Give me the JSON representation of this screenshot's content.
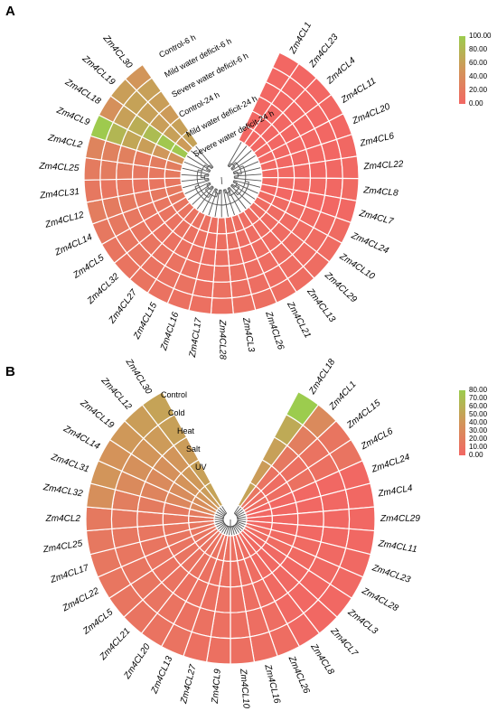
{
  "colors": {
    "low": "#F26763",
    "mid": "#D2955A",
    "high": "#9CCC4E",
    "cell_border": "#ffffff",
    "tree": "#555555"
  },
  "chart_data": [
    {
      "type": "heatmap",
      "panel": "A",
      "conditions": [
        "Control-6 h",
        "Mild water deficit-6 h",
        "Severe water deficit-6 h",
        "Control-24 h",
        "Mild water deficit-24 h",
        "Severe water deficit-24 h"
      ],
      "genes": [
        "Zm4CL1",
        "Zm4CL23",
        "Zm4CL4",
        "Zm4CL11",
        "Zm4CL20",
        "Zm4CL6",
        "Zm4CL22",
        "Zm4CL8",
        "Zm4CL7",
        "Zm4CL24",
        "Zm4CL10",
        "Zm4CL29",
        "Zm4CL13",
        "Zm4CL21",
        "Zm4CL26",
        "Zm4CL3",
        "Zm4CL28",
        "Zm4CL17",
        "Zm4CL16",
        "Zm4CL15",
        "Zm4CL27",
        "Zm4CL32",
        "Zm4CL5",
        "Zm4CL14",
        "Zm4CL12",
        "Zm4CL31",
        "Zm4CL25",
        "Zm4CL2",
        "Zm4CL9",
        "Zm4CL18",
        "Zm4CL19",
        "Zm4CL30"
      ],
      "values": [
        [
          0,
          0,
          0,
          0,
          0,
          0
        ],
        [
          0,
          0,
          0,
          0,
          0,
          0
        ],
        [
          0,
          0,
          0,
          0,
          0,
          0
        ],
        [
          1,
          0,
          0,
          0,
          0,
          1
        ],
        [
          1,
          1,
          0,
          0,
          0,
          0
        ],
        [
          2,
          1,
          1,
          0,
          0,
          1
        ],
        [
          2,
          2,
          1,
          0,
          1,
          2
        ],
        [
          3,
          2,
          2,
          2,
          1,
          3
        ],
        [
          1,
          0,
          0,
          0,
          0,
          1
        ],
        [
          3,
          4,
          4,
          3,
          3,
          4
        ],
        [
          5,
          4,
          4,
          5,
          5,
          5
        ],
        [
          6,
          5,
          5,
          6,
          5,
          6
        ],
        [
          6,
          6,
          5,
          6,
          6,
          7
        ],
        [
          7,
          6,
          6,
          7,
          7,
          8
        ],
        [
          8,
          7,
          7,
          8,
          8,
          9
        ],
        [
          9,
          9,
          8,
          9,
          9,
          10
        ],
        [
          10,
          9,
          9,
          10,
          11,
          10
        ],
        [
          9,
          8,
          8,
          9,
          9,
          10
        ],
        [
          11,
          10,
          10,
          11,
          12,
          11
        ],
        [
          12,
          11,
          11,
          12,
          12,
          12
        ],
        [
          13,
          12,
          11,
          13,
          13,
          14
        ],
        [
          14,
          13,
          12,
          14,
          15,
          14
        ],
        [
          15,
          14,
          13,
          15,
          16,
          15
        ],
        [
          18,
          16,
          15,
          17,
          18,
          19
        ],
        [
          20,
          18,
          17,
          20,
          22,
          24
        ],
        [
          17,
          15,
          14,
          17,
          16,
          18
        ],
        [
          21,
          19,
          18,
          22,
          23,
          22
        ],
        [
          25,
          23,
          22,
          27,
          28,
          32
        ],
        [
          48,
          52,
          58,
          65,
          80,
          98
        ],
        [
          96,
          95,
          85,
          72,
          60,
          45
        ],
        [
          55,
          60,
          58,
          60,
          62,
          58
        ],
        [
          62,
          60,
          55,
          58,
          60,
          50
        ]
      ],
      "colorbar": {
        "min": 0,
        "max": 100,
        "ticks": [
          "100.00",
          "80.00",
          "60.00",
          "40.00",
          "20.00",
          "0.00"
        ]
      }
    },
    {
      "type": "heatmap",
      "panel": "B",
      "conditions": [
        "Control",
        "Cold",
        "Heat",
        "Salt",
        "UV"
      ],
      "genes": [
        "Zm4CL18",
        "Zm4CL1",
        "Zm4CL15",
        "Zm4CL6",
        "Zm4CL24",
        "Zm4CL4",
        "Zm4CL29",
        "Zm4CL11",
        "Zm4CL23",
        "Zm4CL28",
        "Zm4CL3",
        "Zm4CL7",
        "Zm4CL8",
        "Zm4CL26",
        "Zm4CL16",
        "Zm4CL10",
        "Zm4CL9",
        "Zm4CL27",
        "Zm4CL13",
        "Zm4CL20",
        "Zm4CL21",
        "Zm4CL5",
        "Zm4CL22",
        "Zm4CL17",
        "Zm4CL25",
        "Zm4CL2",
        "Zm4CL32",
        "Zm4CL31",
        "Zm4CL14",
        "Zm4CL19",
        "Zm4CL12",
        "Zm4CL30"
      ],
      "values": [
        [
          50,
          45,
          48,
          55,
          80
        ],
        [
          12,
          10,
          15,
          20,
          30
        ],
        [
          6,
          5,
          8,
          10,
          12
        ],
        [
          7,
          6,
          9,
          8,
          11
        ],
        [
          1,
          1,
          1,
          1,
          1
        ],
        [
          1,
          1,
          1,
          1,
          1
        ],
        [
          1,
          1,
          1,
          1,
          1
        ],
        [
          1,
          1,
          1,
          1,
          1
        ],
        [
          4,
          3,
          3,
          2,
          2
        ],
        [
          5,
          4,
          3,
          2,
          2
        ],
        [
          2,
          2,
          1,
          1,
          1
        ],
        [
          3,
          2,
          2,
          1,
          1
        ],
        [
          4,
          3,
          3,
          2,
          2
        ],
        [
          6,
          5,
          5,
          5,
          5
        ],
        [
          7,
          6,
          6,
          6,
          6
        ],
        [
          8,
          7,
          7,
          7,
          7
        ],
        [
          9,
          8,
          8,
          8,
          8
        ],
        [
          9,
          8,
          8,
          9,
          8
        ],
        [
          10,
          9,
          9,
          9,
          10
        ],
        [
          10,
          10,
          9,
          10,
          10
        ],
        [
          11,
          10,
          10,
          11,
          11
        ],
        [
          11,
          11,
          10,
          12,
          12
        ],
        [
          12,
          11,
          11,
          12,
          13
        ],
        [
          13,
          12,
          12,
          13,
          14
        ],
        [
          14,
          13,
          13,
          14,
          15
        ],
        [
          15,
          14,
          14,
          15,
          16
        ],
        [
          18,
          16,
          17,
          20,
          35
        ],
        [
          30,
          28,
          25,
          30,
          40
        ],
        [
          34,
          32,
          30,
          36,
          38
        ],
        [
          40,
          38,
          36,
          40,
          42
        ],
        [
          45,
          42,
          40,
          44,
          46
        ],
        [
          50,
          48,
          45,
          48,
          50
        ]
      ],
      "colorbar": {
        "min": 0,
        "max": 80,
        "ticks": [
          "80.00",
          "70.00",
          "60.00",
          "50.00",
          "40.00",
          "30.00",
          "20.00",
          "10.00",
          "0.00"
        ]
      }
    }
  ]
}
